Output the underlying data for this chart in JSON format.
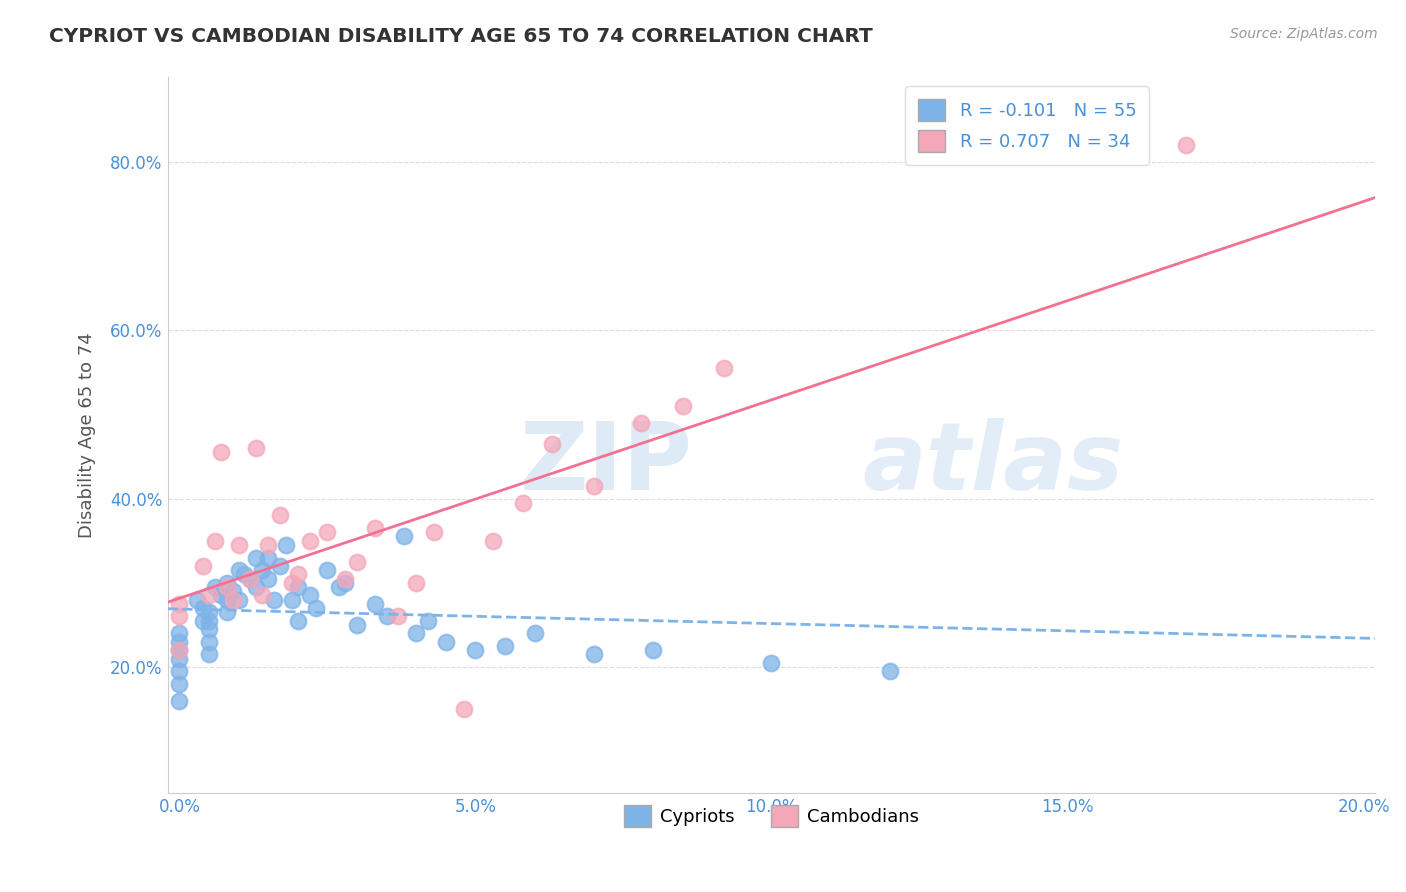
{
  "title": "CYPRIOT VS CAMBODIAN DISABILITY AGE 65 TO 74 CORRELATION CHART",
  "source_text": "Source: ZipAtlas.com",
  "ylabel": "Disability Age 65 to 74",
  "xlim": [
    -0.002,
    0.202
  ],
  "ylim": [
    0.05,
    0.9
  ],
  "xticks": [
    0.0,
    0.05,
    0.1,
    0.15,
    0.2
  ],
  "yticks": [
    0.2,
    0.4,
    0.6,
    0.8
  ],
  "xticklabels": [
    "0.0%",
    "5.0%",
    "10.0%",
    "15.0%",
    "20.0%"
  ],
  "yticklabels": [
    "20.0%",
    "40.0%",
    "60.0%",
    "80.0%"
  ],
  "cypriot_color": "#7EB3E8",
  "cambodian_color": "#F4A7B9",
  "cypriot_R": -0.101,
  "cypriot_N": 55,
  "cambodian_R": 0.707,
  "cambodian_N": 34,
  "legend_label_cypriot": "Cypriots",
  "legend_label_cambodian": "Cambodians",
  "cypriot_x": [
    0.0,
    0.0,
    0.0,
    0.0,
    0.0,
    0.0,
    0.0,
    0.003,
    0.004,
    0.004,
    0.005,
    0.005,
    0.005,
    0.005,
    0.005,
    0.006,
    0.007,
    0.008,
    0.008,
    0.008,
    0.009,
    0.01,
    0.01,
    0.011,
    0.012,
    0.013,
    0.013,
    0.014,
    0.015,
    0.015,
    0.016,
    0.017,
    0.018,
    0.019,
    0.02,
    0.02,
    0.022,
    0.023,
    0.025,
    0.027,
    0.028,
    0.03,
    0.033,
    0.035,
    0.038,
    0.04,
    0.042,
    0.045,
    0.05,
    0.055,
    0.06,
    0.07,
    0.08,
    0.1,
    0.12
  ],
  "cypriot_y": [
    0.24,
    0.23,
    0.22,
    0.21,
    0.195,
    0.18,
    0.16,
    0.28,
    0.27,
    0.255,
    0.265,
    0.255,
    0.245,
    0.23,
    0.215,
    0.295,
    0.285,
    0.3,
    0.28,
    0.265,
    0.29,
    0.315,
    0.28,
    0.31,
    0.305,
    0.33,
    0.295,
    0.315,
    0.33,
    0.305,
    0.28,
    0.32,
    0.345,
    0.28,
    0.295,
    0.255,
    0.285,
    0.27,
    0.315,
    0.295,
    0.3,
    0.25,
    0.275,
    0.26,
    0.355,
    0.24,
    0.255,
    0.23,
    0.22,
    0.225,
    0.24,
    0.215,
    0.22,
    0.205,
    0.195
  ],
  "cambodian_x": [
    0.0,
    0.0,
    0.0,
    0.004,
    0.005,
    0.006,
    0.007,
    0.008,
    0.009,
    0.01,
    0.012,
    0.013,
    0.014,
    0.015,
    0.017,
    0.019,
    0.02,
    0.022,
    0.025,
    0.028,
    0.03,
    0.033,
    0.037,
    0.04,
    0.043,
    0.048,
    0.053,
    0.058,
    0.063,
    0.07,
    0.078,
    0.085,
    0.092,
    0.17
  ],
  "cambodian_y": [
    0.275,
    0.26,
    0.22,
    0.32,
    0.285,
    0.35,
    0.455,
    0.295,
    0.28,
    0.345,
    0.305,
    0.46,
    0.285,
    0.345,
    0.38,
    0.3,
    0.31,
    0.35,
    0.36,
    0.305,
    0.325,
    0.365,
    0.26,
    0.3,
    0.36,
    0.15,
    0.35,
    0.395,
    0.465,
    0.415,
    0.49,
    0.51,
    0.555,
    0.82
  ],
  "grid_color": "#DDDDDD",
  "background_color": "#FFFFFF",
  "title_color": "#333333",
  "axis_label_color": "#555555",
  "tick_label_color": "#4a90d9",
  "trend_line_cypriot_color": "#7EB3E8",
  "trend_line_cambodian_color": "#F47090"
}
